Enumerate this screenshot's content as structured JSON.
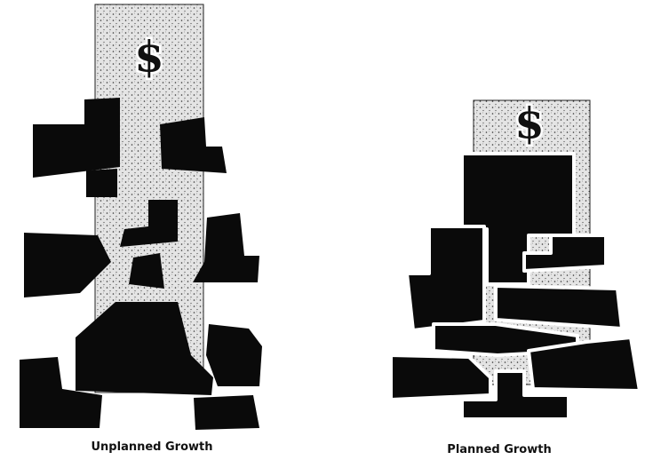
{
  "figures": [
    {
      "symbol": "$",
      "caption": "Unplanned Growth"
    },
    {
      "symbol": "$",
      "caption": "Planned Growth"
    }
  ]
}
